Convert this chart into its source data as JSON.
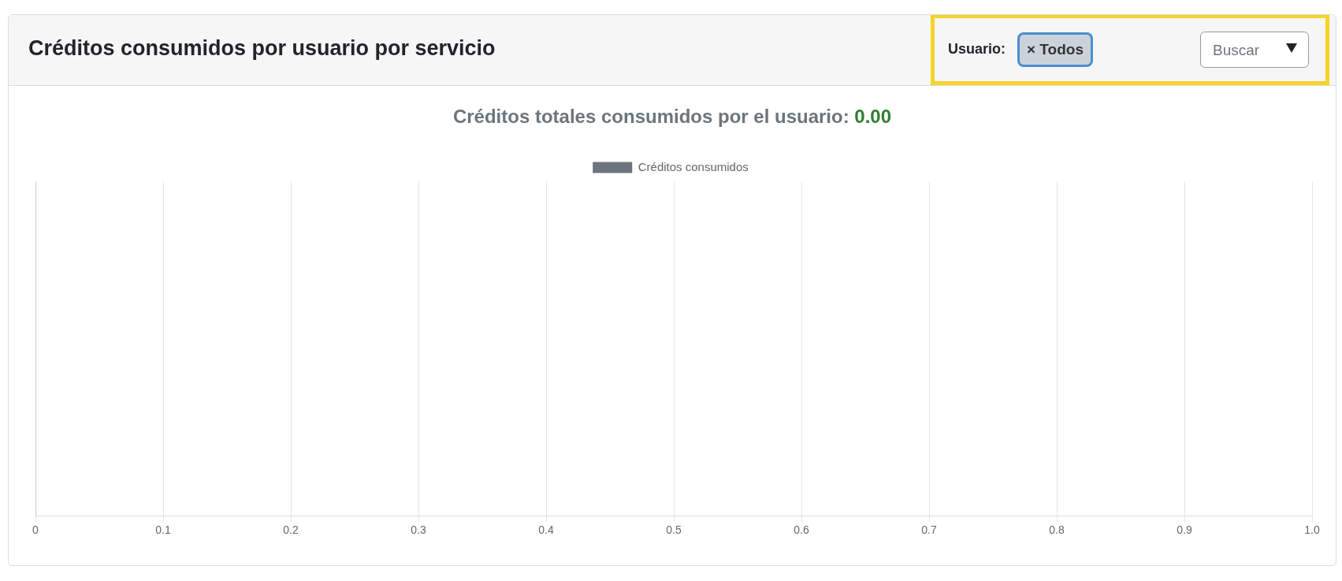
{
  "chart_data": {
    "type": "bar",
    "orientation": "horizontal",
    "title": "Créditos consumidos por usuario por servicio",
    "subtitle": "Créditos totales consumidos por el usuario: 0.00",
    "annotations": [
      "Usuario:",
      "× Todos",
      "Buscar"
    ],
    "series": [
      {
        "name": "Créditos consumidos",
        "color": "#6c757d"
      }
    ],
    "xlim": [
      0,
      1
    ],
    "xticks": [
      0,
      0.1,
      0.2,
      0.3,
      0.4,
      0.5,
      0.6,
      0.7,
      0.8,
      0.9,
      {
        "value": 1,
        "label": "1.0"
      }
    ],
    "grid": "x",
    "legend": "top"
  }
}
